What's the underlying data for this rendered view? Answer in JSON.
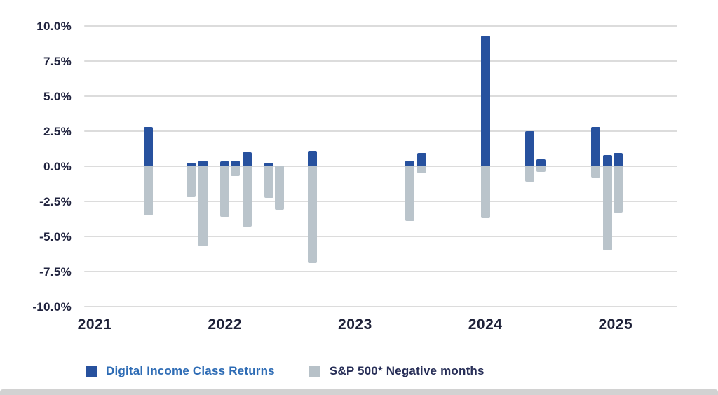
{
  "legend": {
    "items": [
      {
        "label": "Digital Income Class Returns",
        "swatch_color": "#27519e",
        "text_color": "#2e6cb5"
      },
      {
        "label": "S&P 500* Negative months",
        "swatch_color": "#b7c1c8",
        "text_color": "#272e57"
      }
    ]
  },
  "chart_data": {
    "type": "bar",
    "title": "",
    "xlabel": "",
    "ylabel": "",
    "orientation": "vertical",
    "grid": "horizontal-only",
    "legend_position": "bottom-left",
    "ylim": [
      -10,
      10
    ],
    "y_ticks": [
      {
        "label": "10.0%",
        "value": 10
      },
      {
        "label": "7.5%",
        "value": 7.5
      },
      {
        "label": "5.0%",
        "value": 5
      },
      {
        "label": "2.5%",
        "value": 2.5
      },
      {
        "label": "0.0%",
        "value": 0
      },
      {
        "label": "-2.5%",
        "value": -2.5
      },
      {
        "label": "-5.0%",
        "value": -5
      },
      {
        "label": "-7.5%",
        "value": -7.5
      },
      {
        "label": "-10.0%",
        "value": -10
      }
    ],
    "x_ticks": [
      {
        "label": "2021",
        "value": 2021
      },
      {
        "label": "2022",
        "value": 2022
      },
      {
        "label": "2023",
        "value": 2023
      },
      {
        "label": "2024",
        "value": 2024
      },
      {
        "label": "2025",
        "value": 2025
      }
    ],
    "series_names": [
      "Digital Income Class Returns",
      "S&P 500* Negative months"
    ],
    "colors": {
      "digital_income": "#27519e",
      "sp500_negative": "#bac4cb",
      "gridline": "#dcdcdc",
      "tick_label": "#21243f"
    },
    "bars": [
      {
        "x": 2021.41,
        "digital_income_pct": 2.8,
        "sp500_pct": -3.5
      },
      {
        "x": 2021.74,
        "digital_income_pct": 0.25,
        "sp500_pct": -2.2
      },
      {
        "x": 2021.83,
        "digital_income_pct": 0.4,
        "sp500_pct": -5.7
      },
      {
        "x": 2022.0,
        "digital_income_pct": 0.35,
        "sp500_pct": -3.6
      },
      {
        "x": 2022.08,
        "digital_income_pct": 0.4,
        "sp500_pct": -0.7
      },
      {
        "x": 2022.17,
        "digital_income_pct": 1.0,
        "sp500_pct": -4.3
      },
      {
        "x": 2022.34,
        "digital_income_pct": 0.25,
        "sp500_pct": -2.25
      },
      {
        "x": 2022.42,
        "digital_income_pct": 0.0,
        "sp500_pct": -3.1
      },
      {
        "x": 2022.67,
        "digital_income_pct": 1.1,
        "sp500_pct": -6.9
      },
      {
        "x": 2023.42,
        "digital_income_pct": 0.4,
        "sp500_pct": -3.9
      },
      {
        "x": 2023.51,
        "digital_income_pct": 0.95,
        "sp500_pct": -0.5
      },
      {
        "x": 2024.0,
        "digital_income_pct": 9.3,
        "sp500_pct": -3.7
      },
      {
        "x": 2024.34,
        "digital_income_pct": 2.5,
        "sp500_pct": -1.1
      },
      {
        "x": 2024.43,
        "digital_income_pct": 0.5,
        "sp500_pct": -0.4
      },
      {
        "x": 2024.85,
        "digital_income_pct": 2.8,
        "sp500_pct": -0.8
      },
      {
        "x": 2024.94,
        "digital_income_pct": 0.8,
        "sp500_pct": -6.0
      },
      {
        "x": 2025.02,
        "digital_income_pct": 0.95,
        "sp500_pct": -3.3
      }
    ]
  }
}
